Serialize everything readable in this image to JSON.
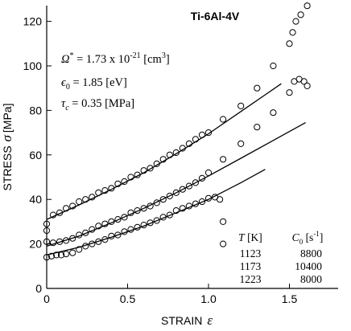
{
  "chart_data": {
    "type": "scatter",
    "title": "Ti-6Al-4V",
    "xlabel": {
      "text": "STRAIN",
      "symbol": "ε"
    },
    "ylabel": {
      "text": "STRESS",
      "symbol": "σ",
      "unit": "[MPa]"
    },
    "xlim": [
      0,
      1.75
    ],
    "ylim": [
      0,
      130
    ],
    "xticks": [
      0,
      0.5,
      1.0,
      1.5
    ],
    "xtick_labels": [
      "0",
      "0.5",
      "1.0",
      "1.5"
    ],
    "yticks": [
      0,
      20,
      40,
      60,
      80,
      100,
      120
    ],
    "ytick_labels": [
      "0",
      "20",
      "40",
      "60",
      "80",
      "100",
      "120"
    ],
    "grid": false,
    "annotations": {
      "omega": {
        "symbol": "Ω",
        "sup": "*",
        "value": " = 1.73 x 10",
        "exp": "-21",
        "unit": " [cm",
        "unit_exp": "3",
        "unit_end": "]"
      },
      "epsilon": {
        "symbol": "ϵ",
        "sub": "0",
        "value": " = 1.85 [eV]"
      },
      "tau": {
        "symbol": "τ",
        "sub": "c",
        "value": " = 0.35 [MPa]"
      }
    },
    "table": {
      "col1_header": {
        "symbol": "T",
        "unit": " [K]"
      },
      "col2_header": {
        "symbol": "C",
        "sub": "0",
        "unit": " [s",
        "unit_exp": "-1",
        "unit_end": "]"
      },
      "rows": [
        {
          "T": "1123",
          "C0": "8800"
        },
        {
          "T": "1173",
          "C0": "10400"
        },
        {
          "T": "1223",
          "C0": "8000"
        }
      ]
    },
    "series": [
      {
        "points": [
          [
            0.0,
            26
          ],
          [
            0.0,
            29
          ],
          [
            0.04,
            33
          ],
          [
            0.08,
            34
          ],
          [
            0.12,
            36
          ],
          [
            0.16,
            37
          ],
          [
            0.2,
            39
          ],
          [
            0.24,
            40
          ],
          [
            0.28,
            41
          ],
          [
            0.32,
            43
          ],
          [
            0.36,
            44
          ],
          [
            0.4,
            45
          ],
          [
            0.44,
            47
          ],
          [
            0.48,
            48
          ],
          [
            0.52,
            50
          ],
          [
            0.56,
            51
          ],
          [
            0.6,
            53
          ],
          [
            0.64,
            54
          ],
          [
            0.68,
            56
          ],
          [
            0.72,
            58
          ],
          [
            0.76,
            60
          ],
          [
            0.8,
            61
          ],
          [
            0.84,
            63
          ],
          [
            0.88,
            65
          ],
          [
            0.92,
            67
          ],
          [
            0.96,
            69
          ],
          [
            1.0,
            70
          ],
          [
            1.09,
            76
          ],
          [
            1.2,
            82
          ],
          [
            1.3,
            90
          ],
          [
            1.4,
            100
          ],
          [
            1.5,
            110
          ],
          [
            1.52,
            115
          ],
          [
            1.54,
            120
          ],
          [
            1.57,
            123
          ],
          [
            1.61,
            127
          ]
        ],
        "fit": [
          [
            0.0,
            31
          ],
          [
            0.2,
            37.5
          ],
          [
            0.4,
            44.5
          ],
          [
            0.6,
            52
          ],
          [
            0.8,
            60.5
          ],
          [
            1.0,
            69.5
          ],
          [
            1.2,
            79.5
          ],
          [
            1.35,
            87
          ],
          [
            1.45,
            92
          ]
        ]
      },
      {
        "points": [
          [
            0.0,
            21
          ],
          [
            0.04,
            20.5
          ],
          [
            0.08,
            21
          ],
          [
            0.12,
            21.5
          ],
          [
            0.16,
            22.5
          ],
          [
            0.2,
            24
          ],
          [
            0.24,
            25
          ],
          [
            0.28,
            26.5
          ],
          [
            0.32,
            28
          ],
          [
            0.36,
            29
          ],
          [
            0.4,
            30
          ],
          [
            0.44,
            31
          ],
          [
            0.48,
            32
          ],
          [
            0.52,
            34
          ],
          [
            0.56,
            35
          ],
          [
            0.6,
            36
          ],
          [
            0.64,
            37
          ],
          [
            0.68,
            38.5
          ],
          [
            0.72,
            40
          ],
          [
            0.76,
            41.5
          ],
          [
            0.8,
            43
          ],
          [
            0.84,
            44.5
          ],
          [
            0.88,
            46
          ],
          [
            0.92,
            47.5
          ],
          [
            0.96,
            49.5
          ],
          [
            1.0,
            52
          ],
          [
            1.09,
            58
          ],
          [
            1.2,
            65
          ],
          [
            1.3,
            72.5
          ],
          [
            1.4,
            79
          ],
          [
            1.5,
            88
          ],
          [
            1.53,
            93
          ],
          [
            1.56,
            94
          ],
          [
            1.59,
            93
          ],
          [
            1.61,
            91
          ]
        ],
        "fit": [
          [
            0.0,
            19
          ],
          [
            0.2,
            23.5
          ],
          [
            0.4,
            29.5
          ],
          [
            0.6,
            36
          ],
          [
            0.8,
            43
          ],
          [
            1.0,
            50.5
          ],
          [
            1.2,
            58.5
          ],
          [
            1.4,
            66.5
          ],
          [
            1.6,
            74.5
          ]
        ]
      },
      {
        "points": [
          [
            0.0,
            14
          ],
          [
            0.03,
            14.5
          ],
          [
            0.06,
            15
          ],
          [
            0.09,
            15
          ],
          [
            0.12,
            15.5
          ],
          [
            0.16,
            16
          ],
          [
            0.2,
            17.5
          ],
          [
            0.24,
            19
          ],
          [
            0.28,
            20
          ],
          [
            0.32,
            21
          ],
          [
            0.36,
            22
          ],
          [
            0.4,
            23.5
          ],
          [
            0.44,
            24
          ],
          [
            0.48,
            25.5
          ],
          [
            0.52,
            26.5
          ],
          [
            0.56,
            27.5
          ],
          [
            0.6,
            28.5
          ],
          [
            0.64,
            29.5
          ],
          [
            0.68,
            30.5
          ],
          [
            0.72,
            32
          ],
          [
            0.76,
            33
          ],
          [
            0.8,
            35
          ],
          [
            0.84,
            36
          ],
          [
            0.88,
            37
          ],
          [
            0.92,
            38
          ],
          [
            0.96,
            39
          ],
          [
            1.0,
            40.5
          ],
          [
            1.04,
            41
          ],
          [
            1.07,
            40
          ],
          [
            1.09,
            30
          ],
          [
            1.09,
            20
          ]
        ],
        "fit": [
          [
            0.0,
            15
          ],
          [
            0.2,
            18.5
          ],
          [
            0.4,
            23
          ],
          [
            0.6,
            28
          ],
          [
            0.8,
            34
          ],
          [
            1.0,
            40
          ],
          [
            1.2,
            47.5
          ],
          [
            1.35,
            53.5
          ]
        ]
      }
    ]
  }
}
